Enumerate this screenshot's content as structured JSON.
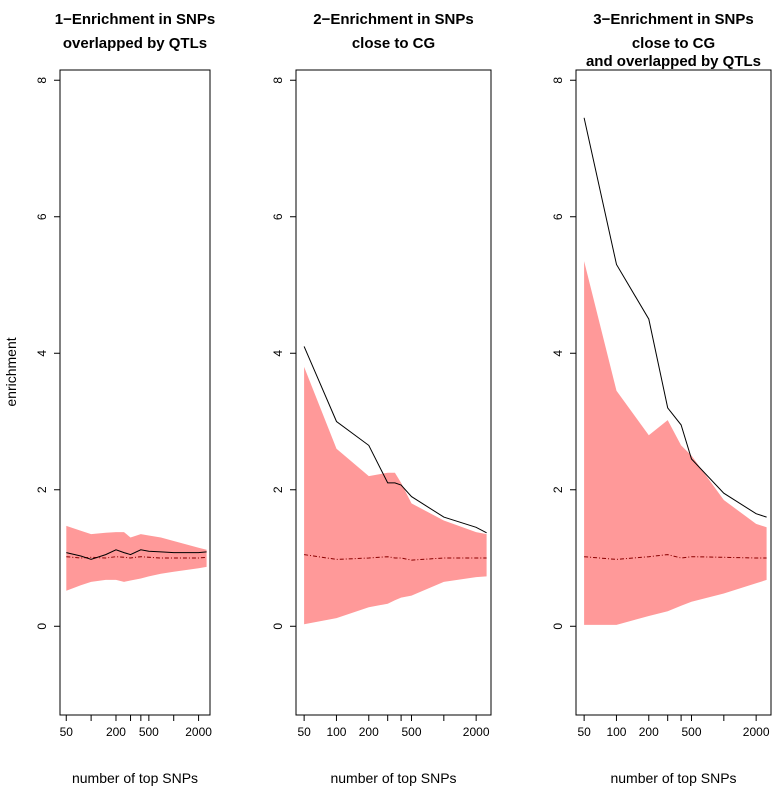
{
  "figure": {
    "ylabel": "enrichment",
    "xlabel": "number of top SNPs"
  },
  "chart_data": [
    {
      "type": "line",
      "title_lines": [
        "1−Enrichment in SNPs",
        "overlapped by QTLs"
      ],
      "xlabel": "number of top SNPs",
      "ylabel": "enrichment",
      "xscale": "log",
      "xlim": [
        42,
        2750
      ],
      "ylim": [
        -1.3,
        8.15
      ],
      "x_ticks": [
        50,
        100,
        200,
        300,
        400,
        500,
        1000,
        2000
      ],
      "x_tick_labels": [
        "50",
        "",
        "200",
        "",
        "",
        "500",
        "",
        "2000"
      ],
      "y_ticks": [
        0,
        2,
        4,
        6,
        8
      ],
      "y_tick_labels": [
        "0",
        "2",
        "4",
        "6",
        "8"
      ],
      "grid": false,
      "band_color": "#ff9999",
      "x": [
        50,
        75,
        100,
        150,
        200,
        250,
        300,
        400,
        500,
        700,
        1000,
        2000,
        2500
      ],
      "series": [
        {
          "role": "observed",
          "color": "#000000",
          "style": "solid",
          "values": [
            1.08,
            1.03,
            0.98,
            1.05,
            1.12,
            1.08,
            1.05,
            1.12,
            1.1,
            1.09,
            1.08,
            1.08,
            1.09
          ]
        },
        {
          "role": "expected",
          "color": "#8b0000",
          "style": "dashdot",
          "values": [
            1.02,
            1.0,
            1.01,
            1.0,
            1.02,
            1.01,
            1.0,
            1.02,
            1.01,
            1.0,
            1.0,
            1.0,
            1.01
          ]
        },
        {
          "role": "band_upper",
          "values": [
            1.47,
            1.4,
            1.35,
            1.37,
            1.38,
            1.38,
            1.3,
            1.35,
            1.33,
            1.3,
            1.25,
            1.15,
            1.12
          ]
        },
        {
          "role": "band_lower",
          "values": [
            0.52,
            0.6,
            0.65,
            0.68,
            0.68,
            0.65,
            0.67,
            0.7,
            0.73,
            0.77,
            0.8,
            0.85,
            0.87
          ]
        }
      ]
    },
    {
      "type": "line",
      "title_lines": [
        "2−Enrichment in SNPs",
        "close to CG"
      ],
      "xlabel": "number of top SNPs",
      "ylabel": "",
      "xscale": "log",
      "xlim": [
        42,
        2750
      ],
      "ylim": [
        -1.3,
        8.15
      ],
      "x_ticks": [
        50,
        100,
        200,
        300,
        400,
        500,
        1000,
        2000
      ],
      "x_tick_labels": [
        "50",
        "100",
        "200",
        "",
        "",
        "500",
        "",
        "2000"
      ],
      "y_ticks": [
        0,
        2,
        4,
        6,
        8
      ],
      "y_tick_labels": [
        "0",
        "2",
        "4",
        "6",
        "8"
      ],
      "grid": false,
      "band_color": "#ff9999",
      "x": [
        50,
        100,
        200,
        300,
        350,
        400,
        500,
        1000,
        2000,
        2500
      ],
      "series": [
        {
          "role": "observed",
          "color": "#000000",
          "style": "solid",
          "values": [
            4.1,
            3.0,
            2.65,
            2.1,
            2.1,
            2.07,
            1.9,
            1.6,
            1.45,
            1.37
          ]
        },
        {
          "role": "expected",
          "color": "#8b0000",
          "style": "dashdot",
          "values": [
            1.05,
            0.98,
            1.0,
            1.02,
            1.0,
            1.0,
            0.97,
            1.0,
            1.0,
            1.0
          ]
        },
        {
          "role": "band_upper",
          "values": [
            3.8,
            2.6,
            2.2,
            2.25,
            2.25,
            2.1,
            1.8,
            1.55,
            1.38,
            1.35
          ]
        },
        {
          "role": "band_lower",
          "values": [
            0.03,
            0.12,
            0.28,
            0.33,
            0.38,
            0.42,
            0.45,
            0.65,
            0.72,
            0.73
          ]
        }
      ]
    },
    {
      "type": "line",
      "title_lines": [
        "3−Enrichment in SNPs",
        "close to CG",
        "and overlapped by QTLs"
      ],
      "xlabel": "number of top SNPs",
      "ylabel": "",
      "xscale": "log",
      "xlim": [
        42,
        2750
      ],
      "ylim": [
        -1.3,
        8.15
      ],
      "x_ticks": [
        50,
        100,
        200,
        300,
        400,
        500,
        1000,
        2000
      ],
      "x_tick_labels": [
        "50",
        "100",
        "200",
        "",
        "",
        "500",
        "",
        "2000"
      ],
      "y_ticks": [
        0,
        2,
        4,
        6,
        8
      ],
      "y_tick_labels": [
        "0",
        "2",
        "4",
        "6",
        "8"
      ],
      "grid": false,
      "band_color": "#ff9999",
      "x": [
        50,
        100,
        200,
        300,
        400,
        500,
        1000,
        2000,
        2500
      ],
      "series": [
        {
          "role": "observed",
          "color": "#000000",
          "style": "solid",
          "values": [
            7.45,
            5.3,
            4.5,
            3.2,
            2.95,
            2.45,
            1.95,
            1.65,
            1.6
          ]
        },
        {
          "role": "expected",
          "color": "#8b0000",
          "style": "dashdot",
          "values": [
            1.02,
            0.98,
            1.02,
            1.05,
            1.0,
            1.02,
            1.01,
            1.0,
            1.0
          ]
        },
        {
          "role": "band_upper",
          "values": [
            5.35,
            3.45,
            2.8,
            3.02,
            2.65,
            2.5,
            1.85,
            1.5,
            1.45
          ]
        },
        {
          "role": "band_lower",
          "values": [
            0.02,
            0.02,
            0.15,
            0.22,
            0.3,
            0.36,
            0.48,
            0.63,
            0.68
          ]
        }
      ]
    }
  ]
}
